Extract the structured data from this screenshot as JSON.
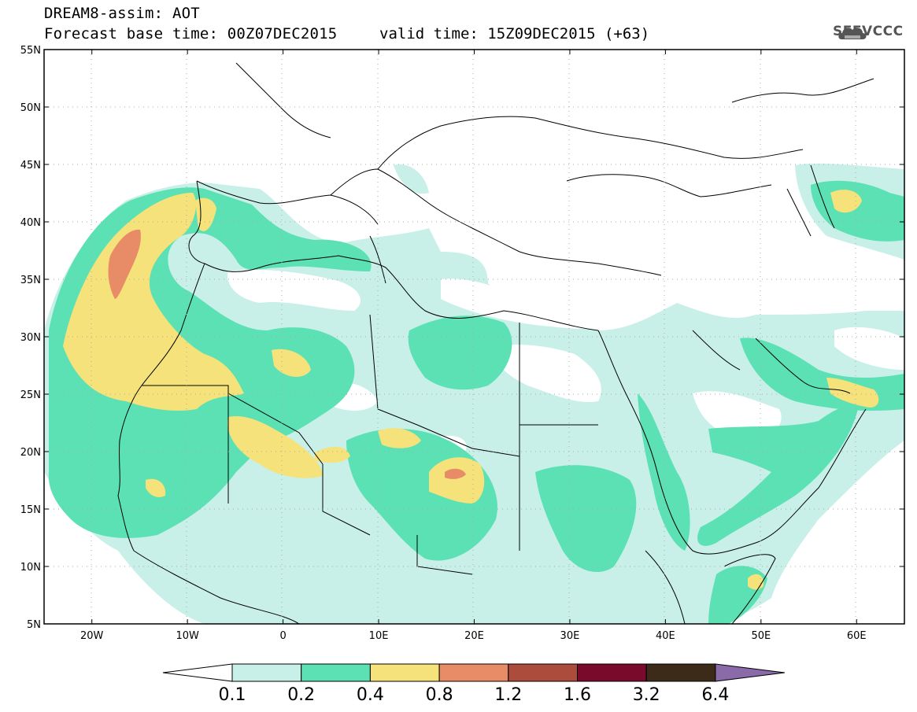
{
  "title": {
    "line1": "DREAM8-assim: AOT",
    "line2": "Forecast base time: 00Z07DEC2015",
    "valid": "valid time: 15Z09DEC2015 (+63)"
  },
  "logo": {
    "text": "SEEVCCC",
    "icon": "cloud-logo-icon"
  },
  "map": {
    "projection": "lat-lon",
    "lon_range": [
      -25,
      65
    ],
    "lat_range": [
      5,
      55
    ],
    "lon_ticks": [
      "20W",
      "10W",
      "0",
      "10E",
      "20E",
      "30E",
      "40E",
      "50E",
      "60E"
    ],
    "lat_ticks": [
      "55N",
      "50N",
      "45N",
      "40N",
      "35N",
      "30N",
      "25N",
      "20N",
      "15N",
      "10N",
      "5N"
    ],
    "grid": "dotted"
  },
  "colorbar": {
    "levels": [
      "0.1",
      "0.2",
      "0.4",
      "0.8",
      "1.2",
      "1.6",
      "3.2",
      "6.4"
    ],
    "colors": [
      "#ffffff",
      "#c8f0e8",
      "#5ce1b4",
      "#f5e27a",
      "#e78c66",
      "#ac4c3c",
      "#7a0a2c",
      "#3d2b1a",
      "#8a6aa8"
    ]
  }
}
